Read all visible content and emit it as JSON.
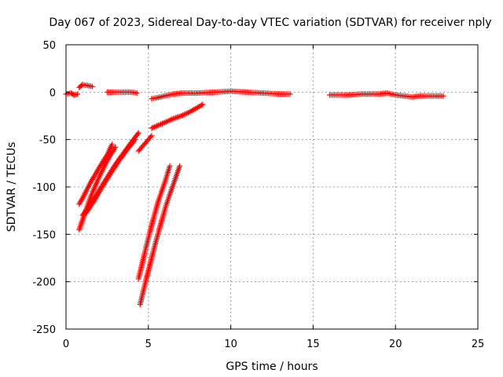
{
  "chart_data": {
    "type": "scatter",
    "title": "Day 067 of 2023, Sidereal Day-to-day VTEC variation (SDTVAR) for receiver nply",
    "xlabel": "GPS time / hours",
    "ylabel": "SDTVAR / TECUs",
    "xlim": [
      0,
      25
    ],
    "ylim": [
      -250,
      50
    ],
    "x_ticks": [
      0,
      5,
      10,
      15,
      20,
      25
    ],
    "y_ticks": [
      50,
      0,
      -50,
      -100,
      -150,
      -200,
      -250
    ],
    "x_tick_labels": [
      "0",
      "5",
      "10",
      "15",
      "20",
      "25"
    ],
    "y_tick_labels": [
      "50",
      "0",
      "-50",
      "-100",
      "-150",
      "-200",
      "-250"
    ],
    "grid": true,
    "marker": "+",
    "color": "#ff0000",
    "series": [
      {
        "segments": [
          [
            [
              0,
              -2
            ],
            [
              0.3,
              -1
            ],
            [
              0.5,
              -3
            ],
            [
              0.7,
              -2
            ]
          ],
          [
            [
              0.8,
              5
            ],
            [
              1.0,
              8
            ],
            [
              1.3,
              7
            ],
            [
              1.6,
              6
            ]
          ],
          [
            [
              2.5,
              0
            ],
            [
              3.0,
              0
            ],
            [
              3.5,
              0
            ],
            [
              4.0,
              0
            ],
            [
              4.3,
              -1
            ]
          ],
          [
            [
              5.2,
              -7
            ],
            [
              5.5,
              -6
            ],
            [
              6.0,
              -4
            ],
            [
              6.5,
              -2
            ],
            [
              7.0,
              -1
            ],
            [
              8.0,
              -1
            ],
            [
              9.0,
              0
            ],
            [
              10.0,
              1
            ],
            [
              11.0,
              0
            ],
            [
              12.0,
              -1
            ],
            [
              13.0,
              -2
            ],
            [
              13.6,
              -2
            ]
          ],
          [
            [
              16.0,
              -3
            ],
            [
              17.0,
              -3
            ],
            [
              18.0,
              -2
            ],
            [
              19.0,
              -2
            ],
            [
              19.5,
              -1
            ],
            [
              20.0,
              -3
            ],
            [
              20.5,
              -4
            ],
            [
              21.0,
              -5
            ],
            [
              21.5,
              -4
            ],
            [
              22.0,
              -4
            ],
            [
              22.5,
              -4
            ],
            [
              22.9,
              -4
            ]
          ],
          [
            [
              0.8,
              -118
            ],
            [
              1.0,
              -112
            ],
            [
              1.5,
              -95
            ],
            [
              2.0,
              -80
            ],
            [
              2.5,
              -66
            ],
            [
              2.8,
              -55
            ]
          ],
          [
            [
              0.8,
              -145
            ],
            [
              1.0,
              -135
            ],
            [
              1.5,
              -110
            ],
            [
              2.0,
              -90
            ],
            [
              2.5,
              -72
            ],
            [
              3.0,
              -58
            ]
          ],
          [
            [
              1.0,
              -130
            ],
            [
              1.5,
              -118
            ],
            [
              2.0,
              -104
            ],
            [
              2.5,
              -90
            ],
            [
              3.0,
              -76
            ],
            [
              3.5,
              -64
            ],
            [
              4.0,
              -52
            ],
            [
              4.4,
              -43
            ]
          ],
          [
            [
              1.2,
              -128
            ],
            [
              1.7,
              -115
            ],
            [
              2.2,
              -100
            ],
            [
              2.7,
              -86
            ],
            [
              3.2,
              -73
            ],
            [
              3.7,
              -61
            ],
            [
              4.2,
              -50
            ]
          ],
          [
            [
              4.4,
              -62
            ],
            [
              4.8,
              -54
            ],
            [
              5.2,
              -46
            ]
          ],
          [
            [
              5.2,
              -38
            ],
            [
              5.6,
              -35
            ],
            [
              6.0,
              -32
            ],
            [
              6.5,
              -28
            ],
            [
              7.0,
              -25
            ],
            [
              7.5,
              -21
            ],
            [
              8.0,
              -16
            ],
            [
              8.3,
              -13
            ]
          ],
          [
            [
              4.4,
              -197
            ],
            [
              4.8,
              -168
            ],
            [
              5.2,
              -140
            ],
            [
              5.6,
              -115
            ],
            [
              6.0,
              -95
            ],
            [
              6.3,
              -78
            ]
          ],
          [
            [
              4.5,
              -224
            ],
            [
              4.9,
              -195
            ],
            [
              5.3,
              -168
            ],
            [
              5.7,
              -142
            ],
            [
              6.1,
              -118
            ],
            [
              6.5,
              -98
            ],
            [
              6.9,
              -78
            ]
          ]
        ]
      }
    ]
  }
}
